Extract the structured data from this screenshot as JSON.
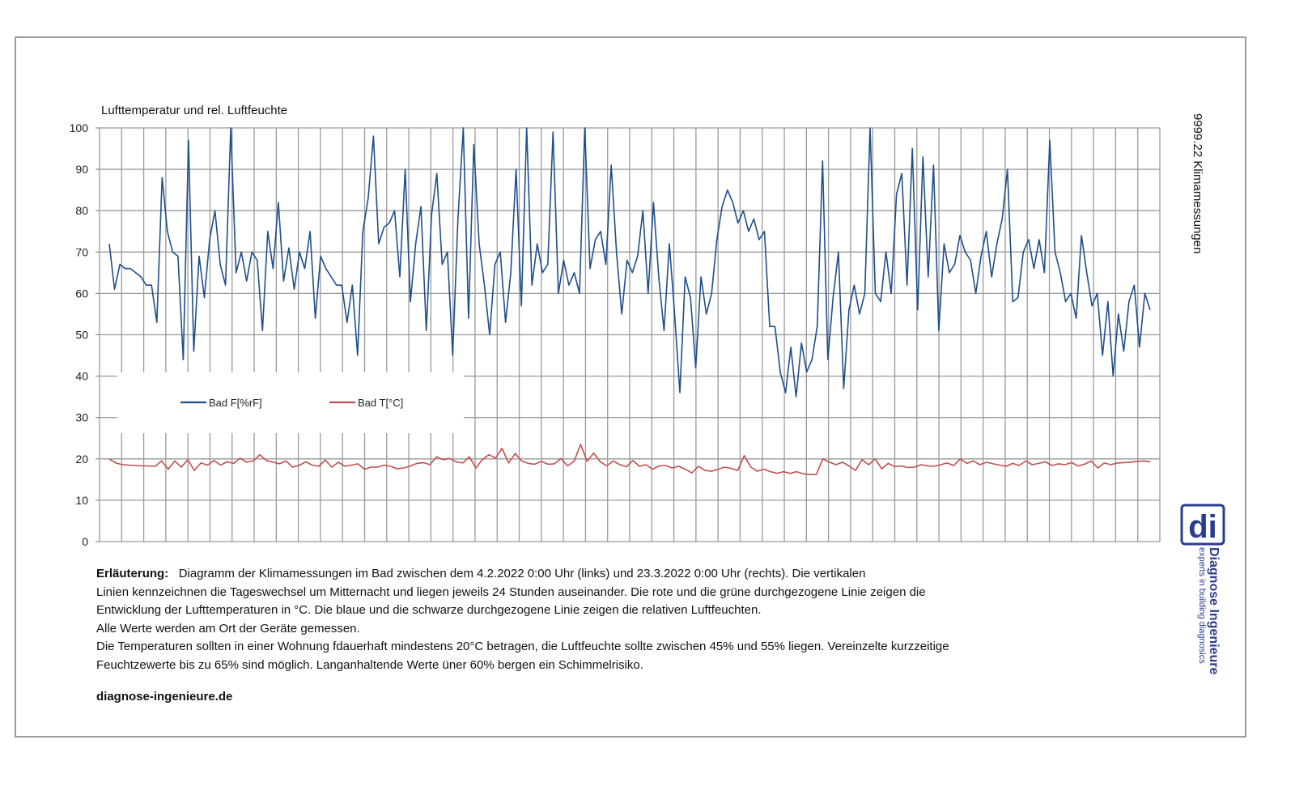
{
  "chart_data": {
    "type": "line",
    "title": "Lufttemperatur und rel. Luftfeuchte",
    "side_title": "9999.22  Klimamessungen",
    "y_axis": {
      "min": 0,
      "max": 100,
      "ticks": [
        "0",
        "10",
        "20",
        "30",
        "40",
        "50",
        "60",
        "70",
        "80",
        "90",
        "100"
      ]
    },
    "x_range": {
      "start": "4.2.2022 0:00",
      "end": "23.3.2022 0:00",
      "day_lines": 48
    },
    "legend": {
      "placement": "lower-left",
      "entries": [
        "Bad F[%rF]",
        "Bad T[°C]"
      ]
    },
    "series": [
      {
        "name": "Bad F[%rF]",
        "color": "#1f4e8c",
        "values": [
          72,
          61,
          67,
          66,
          66,
          65,
          64,
          62,
          62,
          53,
          88,
          75,
          70,
          69,
          44,
          97,
          46,
          69,
          59,
          73,
          80,
          67,
          62,
          100,
          65,
          70,
          63,
          70,
          68,
          51,
          75,
          66,
          82,
          63,
          71,
          61,
          70,
          66,
          75,
          54,
          69,
          66,
          64,
          62,
          62,
          53,
          62,
          45,
          75,
          83,
          98,
          72,
          76,
          77,
          80,
          64,
          90,
          58,
          72,
          81,
          51,
          79,
          89,
          67,
          70,
          45,
          78,
          100,
          54,
          96,
          72,
          62,
          50,
          67,
          70,
          53,
          65,
          90,
          57,
          100,
          62,
          72,
          65,
          67,
          99,
          60,
          68,
          62,
          65,
          60,
          100,
          66,
          73,
          75,
          67,
          91,
          70,
          55,
          68,
          65,
          69,
          80,
          60,
          82,
          64,
          51,
          72,
          55,
          36,
          64,
          59,
          42,
          64,
          55,
          60,
          73,
          81,
          85,
          82,
          77,
          80,
          75,
          78,
          73,
          75,
          52,
          52,
          41,
          36,
          47,
          35,
          48,
          41,
          44,
          52,
          92,
          44,
          59,
          70,
          37,
          56,
          62,
          55,
          60,
          100,
          60,
          58,
          70,
          60,
          84,
          89,
          62,
          95,
          56,
          93,
          64,
          91,
          51,
          72,
          65,
          67,
          74,
          70,
          68,
          60,
          69,
          75,
          64,
          72,
          78,
          90,
          58,
          59,
          70,
          73,
          66,
          73,
          65,
          97,
          70,
          65,
          58,
          60,
          54,
          74,
          65,
          57,
          60,
          45,
          58,
          40,
          55,
          46,
          58,
          62,
          47,
          60,
          56
        ]
      },
      {
        "name": "Bad T[°C]",
        "color": "#c0504d",
        "values": [
          20,
          19,
          18.6,
          18.5,
          18.4,
          18.3,
          18.3,
          18.2,
          19.5,
          17.5,
          19.5,
          18,
          19.8,
          17.2,
          19,
          18.5,
          19.6,
          18.5,
          19.3,
          18.9,
          20.2,
          19.2,
          19.5,
          21,
          19.6,
          19.2,
          18.8,
          19.5,
          18,
          18.4,
          19.3,
          18.5,
          18.2,
          19.7,
          18,
          19.2,
          18.2,
          18.5,
          18.8,
          17.5,
          18,
          18,
          18.5,
          18.2,
          17.6,
          17.8,
          18.3,
          18.9,
          19.1,
          18.6,
          20.5,
          19.8,
          20.1,
          19.3,
          19,
          20.5,
          17.8,
          19.8,
          21,
          20.2,
          22.5,
          19,
          21.3,
          19.5,
          18.9,
          18.7,
          19.4,
          18.7,
          18.8,
          20.1,
          18.3,
          19.4,
          23.5,
          19.4,
          21.4,
          19.3,
          18.3,
          19.5,
          18.6,
          18.1,
          19.6,
          18.2,
          18.6,
          17.5,
          18.3,
          18.4,
          17.8,
          18.2,
          17.5,
          16.6,
          18.2,
          17.2,
          17,
          17.5,
          18,
          17.7,
          17.2,
          20.8,
          18,
          17,
          17.5,
          16.9,
          16.5,
          16.9,
          16.5,
          16.9,
          16.4,
          16.2,
          16.2,
          20,
          19.2,
          18.6,
          19.2,
          18.3,
          17.2,
          19.8,
          18.6,
          20,
          17.6,
          18.9,
          18.1,
          18.3,
          17.9,
          18,
          18.6,
          18.3,
          18.2,
          18.6,
          19,
          18.4,
          20,
          18.9,
          19.5,
          18.6,
          19.2,
          18.8,
          18.5,
          18.2,
          18.9,
          18.4,
          19.5,
          18.6,
          18.9,
          19.3,
          18.4,
          18.8,
          18.6,
          19.1,
          18.3,
          18.7,
          19.5,
          17.8,
          19,
          18.6,
          19,
          19.1,
          19.2,
          19.4,
          19.5,
          19.3
        ]
      }
    ]
  },
  "explanation": {
    "label": "Erläuterung:",
    "line1": "Diagramm der Klimamessungen im Bad zwischen dem  4.2.2022 0:00 Uhr (links) und 23.3.2022 0:00 Uhr (rechts).  Die vertikalen",
    "line2": "Linien kennzeichnen die Tageswechsel um Mitternacht und liegen jeweils 24 Stunden auseinander.  Die rote und die grüne durchgezogene Linie zeigen die",
    "line3": "Entwicklung der Lufttemperaturen in °C. Die blaue und die schwarze durchgezogene Linie zeigen die relativen Luftfeuchten.",
    "line4": "Alle Werte werden am Ort der Geräte gemessen.",
    "line5": "Die Temperaturen sollten in einer Wohnung fdauerhaft mindestens 20°C betragen, die Luftfeuchte sollte zwischen 45% und 55% liegen. Vereinzelte kurzzeitige",
    "line6": "Feuchtzewerte bis zu 65% sind möglich. Langanhaltende Werte üner 60% bergen ein Schimmelrisiko."
  },
  "website": "diagnose-ingenieure.de",
  "logo": {
    "mark_text": "di",
    "name": "Diagnose Ingenieure",
    "claim": "experts in building diagnosics",
    "color": "#2a3c8f"
  }
}
